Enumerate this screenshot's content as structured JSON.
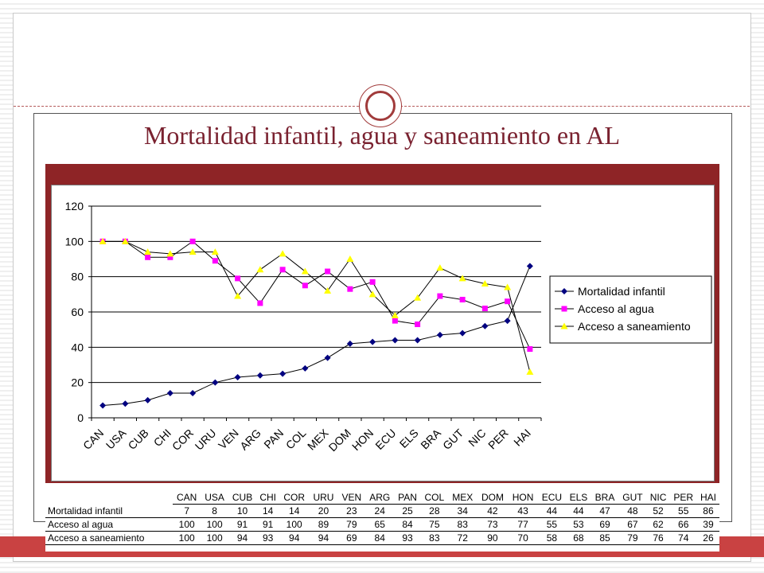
{
  "title": "Mortalidad infantil, agua y saneamiento en AL",
  "colors": {
    "accent_red": "#8e2426",
    "title_color": "#7a2230",
    "series_mortalidad": "#000080",
    "series_agua": "#ff00ff",
    "series_saneamiento": "#ffff00"
  },
  "chart_data": {
    "type": "line",
    "categories": [
      "CAN",
      "USA",
      "CUB",
      "CHI",
      "COR",
      "URU",
      "VEN",
      "ARG",
      "PAN",
      "COL",
      "MEX",
      "DOM",
      "HON",
      "ECU",
      "ELS",
      "BRA",
      "GUT",
      "NIC",
      "PER",
      "HAI"
    ],
    "series": [
      {
        "name": "Mortalidad infantil",
        "values": [
          7,
          8,
          10,
          14,
          14,
          20,
          23,
          24,
          25,
          28,
          34,
          42,
          43,
          44,
          44,
          47,
          48,
          52,
          55,
          86
        ]
      },
      {
        "name": "Acceso al agua",
        "values": [
          100,
          100,
          91,
          91,
          100,
          89,
          79,
          65,
          84,
          75,
          83,
          73,
          77,
          55,
          53,
          69,
          67,
          62,
          66,
          39
        ]
      },
      {
        "name": "Acceso a saneamiento",
        "values": [
          100,
          100,
          94,
          93,
          94,
          94,
          69,
          84,
          93,
          83,
          72,
          90,
          70,
          58,
          68,
          85,
          79,
          76,
          74,
          26
        ]
      }
    ],
    "y_ticks": [
      "0",
      "20",
      "40",
      "60",
      "80",
      "100",
      "120"
    ],
    "ylim": [
      0,
      120
    ],
    "grid": "horizontal",
    "legend": "right"
  },
  "table": {
    "headers": [
      "CAN",
      "USA",
      "CUB",
      "CHI",
      "COR",
      "URU",
      "VEN",
      "ARG",
      "PAN",
      "COL",
      "MEX",
      "DOM",
      "HON",
      "ECU",
      "ELS",
      "BRA",
      "GUT",
      "NIC",
      "PER",
      "HAI"
    ],
    "rows": [
      {
        "label": "Mortalidad infantil",
        "values": [
          "7",
          "8",
          "10",
          "14",
          "14",
          "20",
          "23",
          "24",
          "25",
          "28",
          "34",
          "42",
          "43",
          "44",
          "44",
          "47",
          "48",
          "52",
          "55",
          "86"
        ]
      },
      {
        "label": "Acceso al agua",
        "values": [
          "100",
          "100",
          "91",
          "91",
          "100",
          "89",
          "79",
          "65",
          "84",
          "75",
          "83",
          "73",
          "77",
          "55",
          "53",
          "69",
          "67",
          "62",
          "66",
          "39"
        ]
      },
      {
        "label": "Acceso a saneamiento",
        "values": [
          "100",
          "100",
          "94",
          "93",
          "94",
          "94",
          "69",
          "84",
          "93",
          "83",
          "72",
          "90",
          "70",
          "58",
          "68",
          "85",
          "79",
          "76",
          "74",
          "26"
        ]
      }
    ]
  }
}
